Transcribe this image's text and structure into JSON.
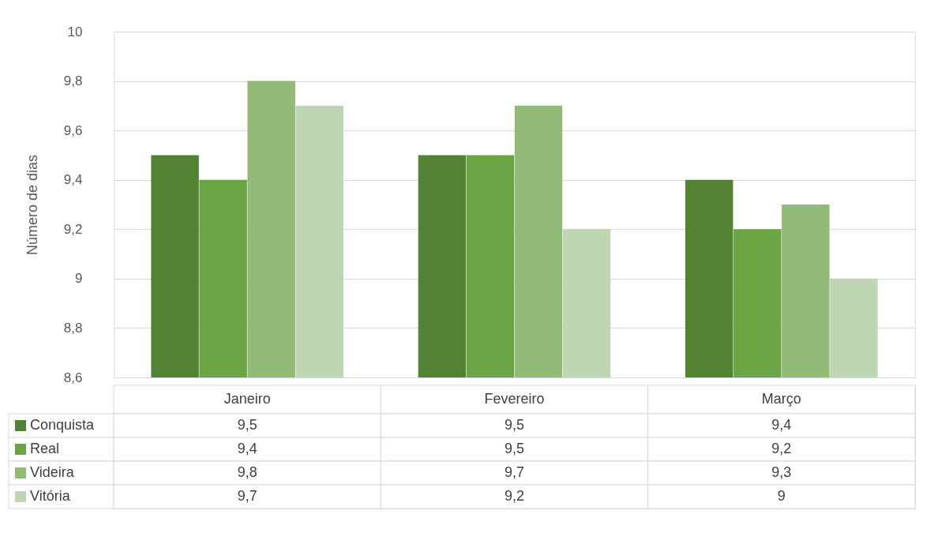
{
  "chart_data": {
    "type": "bar",
    "ylabel": "Número de dias",
    "categories": [
      "Janeiro",
      "Fevereiro",
      "Março"
    ],
    "series": [
      {
        "name": "Conquista",
        "color": "#548235",
        "values": [
          9.5,
          9.5,
          9.4
        ],
        "value_labels": [
          "9,5",
          "9,5",
          "9,4"
        ]
      },
      {
        "name": "Real",
        "color": "#6aa443",
        "values": [
          9.4,
          9.5,
          9.2
        ],
        "value_labels": [
          "9,4",
          "9,5",
          "9,2"
        ]
      },
      {
        "name": "Videira",
        "color": "#92bb78",
        "values": [
          9.8,
          9.7,
          9.3
        ],
        "value_labels": [
          "9,8",
          "9,7",
          "9,3"
        ]
      },
      {
        "name": "Vitória",
        "color": "#bfd6b2",
        "values": [
          9.7,
          9.2,
          9.0
        ],
        "value_labels": [
          "9,7",
          "9,2",
          "9"
        ]
      }
    ],
    "ylim": [
      8.6,
      10
    ],
    "yticks": [
      {
        "value": 8.6,
        "label": "8,6"
      },
      {
        "value": 8.8,
        "label": "8,8"
      },
      9,
      {
        "value": 9.2,
        "label": "9,2"
      },
      {
        "value": 9.4,
        "label": "9,4"
      },
      {
        "value": 9.6,
        "label": "9,6"
      },
      {
        "value": 9.8,
        "label": "9,8"
      },
      10
    ],
    "grid": "y",
    "legend": "bottom"
  }
}
